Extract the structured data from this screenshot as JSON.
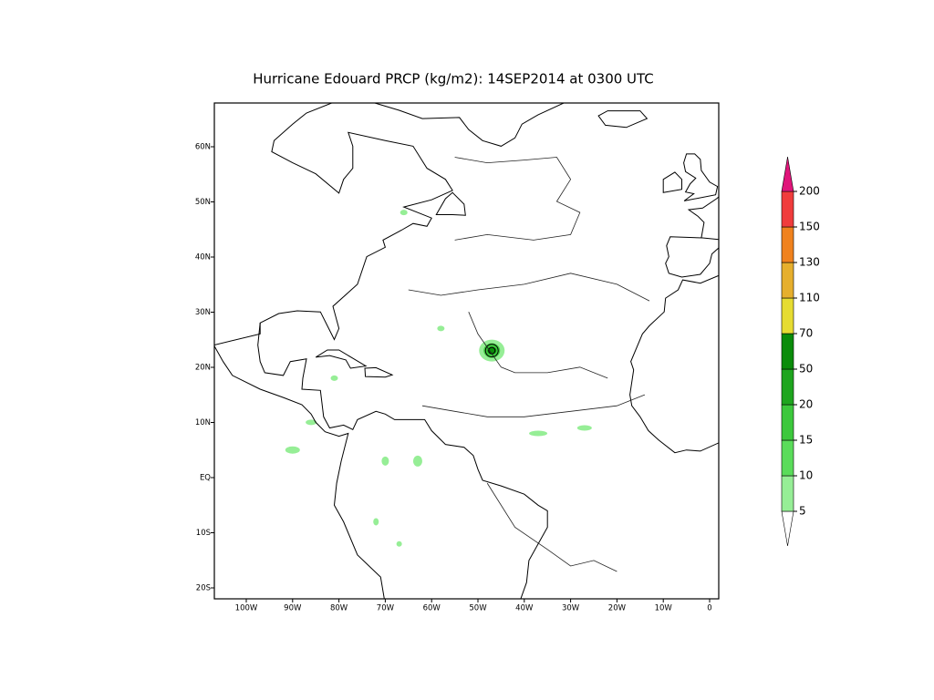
{
  "title": "Hurricane Edouard PRCP (kg/m2): 14SEP2014 at 0300 UTC",
  "lat_labels": [
    "60N",
    "50N",
    "40N",
    "30N",
    "20N",
    "10N",
    "EQ",
    "10S",
    "20S"
  ],
  "lon_labels": [
    "100W",
    "90W",
    "80W",
    "70W",
    "60W",
    "50W",
    "40W",
    "30W",
    "20W",
    "10W",
    "0"
  ],
  "colorbar": {
    "levels": [
      5,
      10,
      15,
      20,
      50,
      70,
      110,
      130,
      150,
      200
    ],
    "colors": [
      "#ffffff",
      "#96ee96",
      "#5adc5a",
      "#3cc83c",
      "#1ea51e",
      "#0a8c0a",
      "#e6dc32",
      "#e6af2d",
      "#f0821e",
      "#f03c3c",
      "#e0157a"
    ]
  }
}
